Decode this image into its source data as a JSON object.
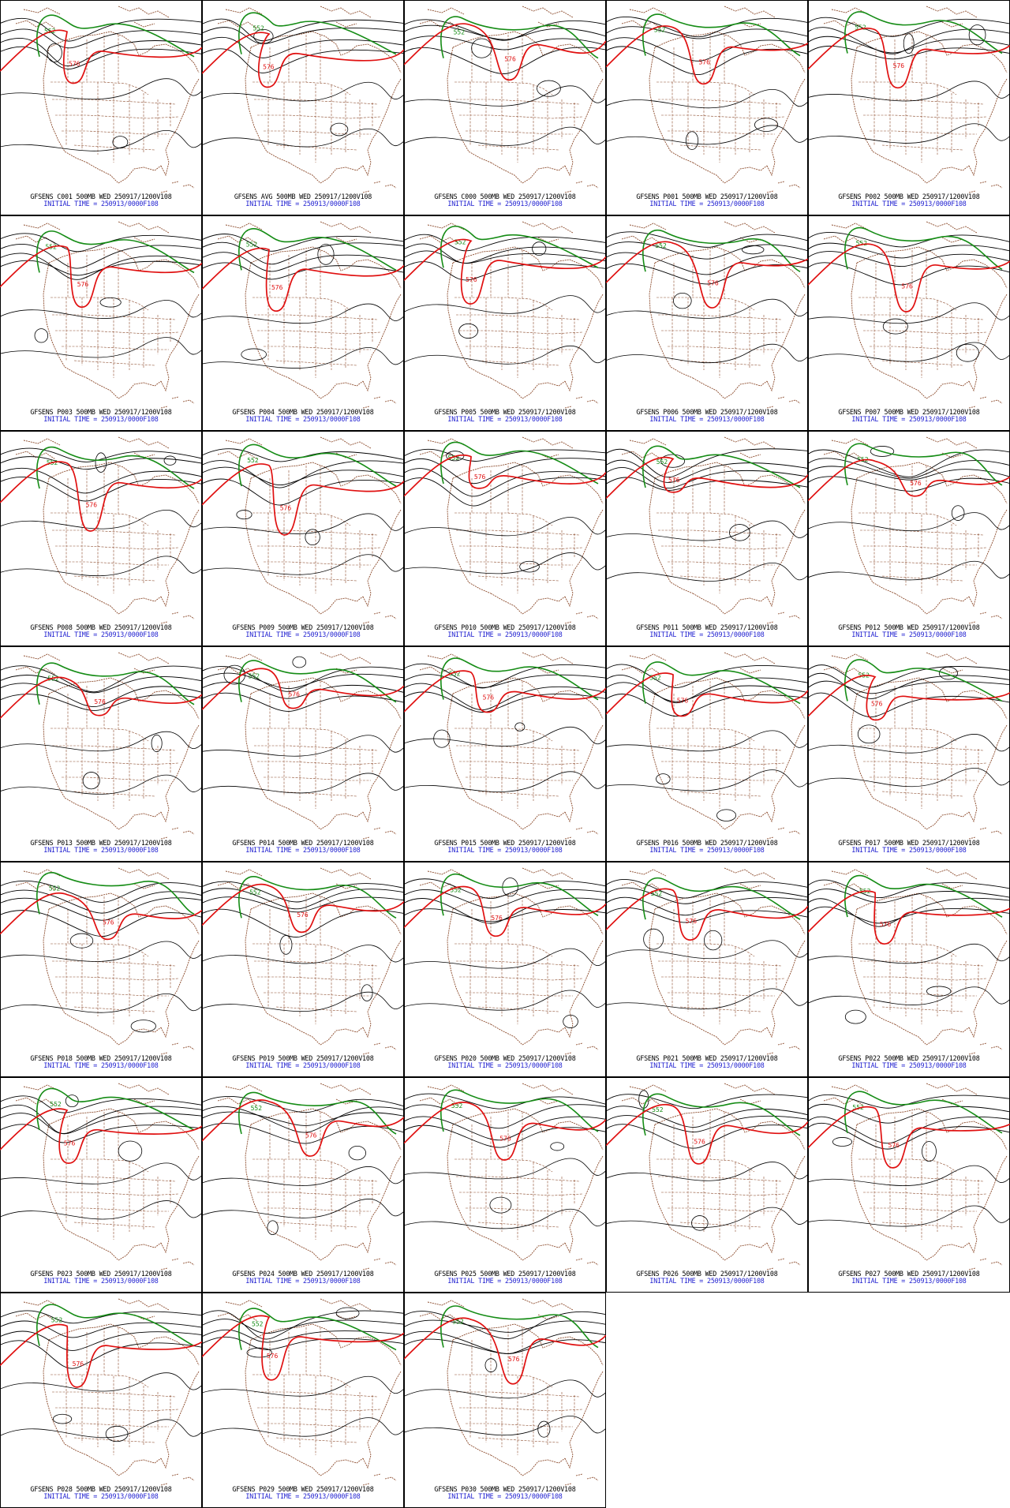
{
  "colors": {
    "background": "#ffffff",
    "frame": "#000000",
    "coastline": "#8b4a2b",
    "contour": "#000000",
    "contour_552": "#158c15",
    "contour_576": "#e01010",
    "caption_model": "#000000",
    "caption_init": "#1f1fd0"
  },
  "contour_labels": {
    "green": "552",
    "red": "576"
  },
  "panels": [
    {
      "member": "C001",
      "model_line": "GFSENS C001 500MB WED 250917/1200V108",
      "init_line": "INITIAL TIME = 250913/0000F108"
    },
    {
      "member": "AVG",
      "model_line": "GFSENS AVG 500MB WED 250917/1200V108",
      "init_line": "INITIAL TIME = 250913/0000F108"
    },
    {
      "member": "C000",
      "model_line": "GFSENS C000 500MB WED 250917/1200V108",
      "init_line": "INITIAL TIME = 250913/0000F108"
    },
    {
      "member": "P001",
      "model_line": "GFSENS P001 500MB WED 250917/1200V108",
      "init_line": "INITIAL TIME = 250913/0000F108"
    },
    {
      "member": "P002",
      "model_line": "GFSENS P002 500MB WED 250917/1200V108",
      "init_line": "INITIAL TIME = 250913/0000F108"
    },
    {
      "member": "P003",
      "model_line": "GFSENS P003 500MB WED 250917/1200V108",
      "init_line": "INITIAL TIME = 250913/0000F108"
    },
    {
      "member": "P004",
      "model_line": "GFSENS P004 500MB WED 250917/1200V108",
      "init_line": "INITIAL TIME = 250913/0000F108"
    },
    {
      "member": "P005",
      "model_line": "GFSENS P005 500MB WED 250917/1200V108",
      "init_line": "INITIAL TIME = 250913/0000F108"
    },
    {
      "member": "P006",
      "model_line": "GFSENS P006 500MB WED 250917/1200V108",
      "init_line": "INITIAL TIME = 250913/0000F108"
    },
    {
      "member": "P007",
      "model_line": "GFSENS P007 500MB WED 250917/1200V108",
      "init_line": "INITIAL TIME = 250913/0000F108"
    },
    {
      "member": "P008",
      "model_line": "GFSENS P008 500MB WED 250917/1200V108",
      "init_line": "INITIAL TIME = 250913/0000F108"
    },
    {
      "member": "P009",
      "model_line": "GFSENS P009 500MB WED 250917/1200V108",
      "init_line": "INITIAL TIME = 250913/0000F108"
    },
    {
      "member": "P010",
      "model_line": "GFSENS P010 500MB WED 250917/1200V108",
      "init_line": "INITIAL TIME = 250913/0000F108"
    },
    {
      "member": "P011",
      "model_line": "GFSENS P011 500MB WED 250917/1200V108",
      "init_line": "INITIAL TIME = 250913/0000F108"
    },
    {
      "member": "P012",
      "model_line": "GFSENS P012 500MB WED 250917/1200V108",
      "init_line": "INITIAL TIME = 250913/0000F108"
    },
    {
      "member": "P013",
      "model_line": "GFSENS P013 500MB WED 250917/1200V108",
      "init_line": "INITIAL TIME = 250913/0000F108"
    },
    {
      "member": "P014",
      "model_line": "GFSENS P014 500MB WED 250917/1200V108",
      "init_line": "INITIAL TIME = 250913/0000F108"
    },
    {
      "member": "P015",
      "model_line": "GFSENS P015 500MB WED 250917/1200V108",
      "init_line": "INITIAL TIME = 250913/0000F108"
    },
    {
      "member": "P016",
      "model_line": "GFSENS P016 500MB WED 250917/1200V108",
      "init_line": "INITIAL TIME = 250913/0000F108"
    },
    {
      "member": "P017",
      "model_line": "GFSENS P017 500MB WED 250917/1200V108",
      "init_line": "INITIAL TIME = 250913/0000F108"
    },
    {
      "member": "P018",
      "model_line": "GFSENS P018 500MB WED 250917/1200V108",
      "init_line": "INITIAL TIME = 250913/0000F108"
    },
    {
      "member": "P019",
      "model_line": "GFSENS P019 500MB WED 250917/1200V108",
      "init_line": "INITIAL TIME = 250913/0000F108"
    },
    {
      "member": "P020",
      "model_line": "GFSENS P020 500MB WED 250917/1200V108",
      "init_line": "INITIAL TIME = 250913/0000F108"
    },
    {
      "member": "P021",
      "model_line": "GFSENS P021 500MB WED 250917/1200V108",
      "init_line": "INITIAL TIME = 250913/0000F108"
    },
    {
      "member": "P022",
      "model_line": "GFSENS P022 500MB WED 250917/1200V108",
      "init_line": "INITIAL TIME = 250913/0000F108"
    },
    {
      "member": "P023",
      "model_line": "GFSENS P023 500MB WED 250917/1200V108",
      "init_line": "INITIAL TIME = 250913/0000F108"
    },
    {
      "member": "P024",
      "model_line": "GFSENS P024 500MB WED 250917/1200V108",
      "init_line": "INITIAL TIME = 250913/0000F108"
    },
    {
      "member": "P025",
      "model_line": "GFSENS P025 500MB WED 250917/1200V108",
      "init_line": "INITIAL TIME = 250913/0000F108"
    },
    {
      "member": "P026",
      "model_line": "GFSENS P026 500MB WED 250917/1200V108",
      "init_line": "INITIAL TIME = 250913/0000F108"
    },
    {
      "member": "P027",
      "model_line": "GFSENS P027 500MB WED 250917/1200V108",
      "init_line": "INITIAL TIME = 250913/0000F108"
    },
    {
      "member": "P028",
      "model_line": "GFSENS P028 500MB WED 250917/1200V108",
      "init_line": "INITIAL TIME = 250913/0000F108"
    },
    {
      "member": "P029",
      "model_line": "GFSENS P029 500MB WED 250917/1200V108",
      "init_line": "INITIAL TIME = 250913/0000F108"
    },
    {
      "member": "P030",
      "model_line": "GFSENS P030 500MB WED 250917/1200V108",
      "init_line": "INITIAL TIME = 250913/0000F108"
    }
  ]
}
